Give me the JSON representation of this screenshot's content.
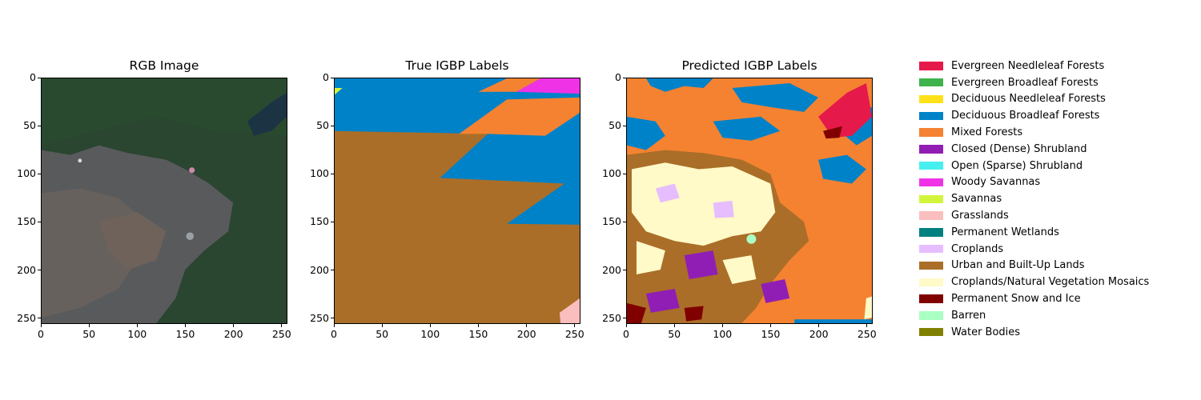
{
  "chart_data": [
    {
      "type": "heatmap",
      "title": "RGB Image",
      "xlim": [
        0,
        256
      ],
      "ylim": [
        256,
        0
      ],
      "xticks": [
        0,
        50,
        100,
        150,
        200,
        250
      ],
      "yticks": [
        0,
        50,
        100,
        150,
        200,
        250
      ]
    },
    {
      "type": "heatmap",
      "title": "True IGBP Labels",
      "xlim": [
        0,
        256
      ],
      "ylim": [
        256,
        0
      ],
      "xticks": [
        0,
        50,
        100,
        150,
        200,
        250
      ],
      "yticks": [
        0,
        50,
        100,
        150,
        200,
        250
      ]
    },
    {
      "type": "heatmap",
      "title": "Predicted IGBP Labels",
      "xlim": [
        0,
        256
      ],
      "ylim": [
        256,
        0
      ],
      "xticks": [
        0,
        50,
        100,
        150,
        200,
        250
      ],
      "yticks": [
        0,
        50,
        100,
        150,
        200,
        250
      ]
    }
  ],
  "legend": {
    "items": [
      {
        "label": "Evergreen Needleleaf Forests",
        "color": "#e6194b"
      },
      {
        "label": "Evergreen Broadleaf Forests",
        "color": "#3cb44b"
      },
      {
        "label": "Deciduous Needleleaf Forests",
        "color": "#ffe119"
      },
      {
        "label": "Deciduous Broadleaf Forests",
        "color": "#0082c8"
      },
      {
        "label": "Mixed Forests",
        "color": "#f58231"
      },
      {
        "label": "Closed (Dense) Shrubland",
        "color": "#911eb4"
      },
      {
        "label": "Open (Sparse) Shrubland",
        "color": "#46f0f0"
      },
      {
        "label": "Woody Savannas",
        "color": "#f032e6"
      },
      {
        "label": "Savannas",
        "color": "#d2f53c"
      },
      {
        "label": "Grasslands",
        "color": "#fabebe"
      },
      {
        "label": "Permanent Wetlands",
        "color": "#008080"
      },
      {
        "label": "Croplands",
        "color": "#e6beff"
      },
      {
        "label": "Urban and Built-Up Lands",
        "color": "#aa6e28"
      },
      {
        "label": "Croplands/Natural Vegetation Mosaics",
        "color": "#fffac8"
      },
      {
        "label": "Permanent Snow and Ice",
        "color": "#800000"
      },
      {
        "label": "Barren",
        "color": "#aaffc3"
      },
      {
        "label": "Water Bodies",
        "color": "#808000"
      }
    ]
  }
}
